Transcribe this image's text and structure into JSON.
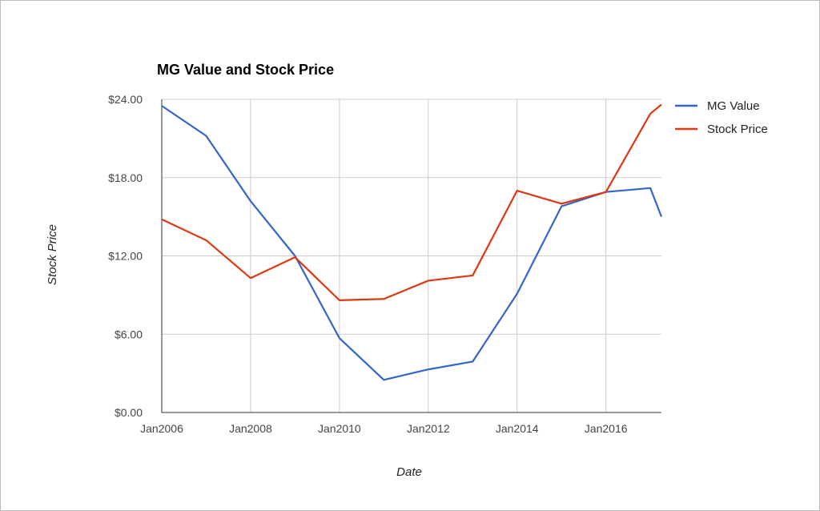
{
  "chart_data": {
    "type": "line",
    "title": "MG Value and Stock Price",
    "xlabel": "Date",
    "ylabel": "Stock Price",
    "x_range": [
      "2006-01",
      "2017-04"
    ],
    "ylim": [
      0,
      24
    ],
    "y_ticks": [
      "$0.00",
      "$6.00",
      "$12.00",
      "$18.00",
      "$24.00"
    ],
    "x_ticks": [
      "Jan2006",
      "Jan2008",
      "Jan2010",
      "Jan2012",
      "Jan2014",
      "Jan2016"
    ],
    "grid": true,
    "legend_position": "right",
    "x": [
      "2006-01",
      "2007-01",
      "2008-01",
      "2009-01",
      "2010-01",
      "2011-01",
      "2012-01",
      "2013-01",
      "2014-01",
      "2015-01",
      "2016-01",
      "2017-01",
      "2017-04"
    ],
    "series": [
      {
        "name": "MG Value",
        "color": "#3366cc",
        "values": [
          23.5,
          21.2,
          16.2,
          12.0,
          5.7,
          2.5,
          3.3,
          3.9,
          9.1,
          15.8,
          16.9,
          17.2,
          15.0
        ]
      },
      {
        "name": "Stock Price",
        "color": "#dc3912",
        "values": [
          14.8,
          13.2,
          10.3,
          11.9,
          8.6,
          8.7,
          10.1,
          10.5,
          17.0,
          16.0,
          16.9,
          22.9,
          23.6
        ]
      }
    ]
  }
}
